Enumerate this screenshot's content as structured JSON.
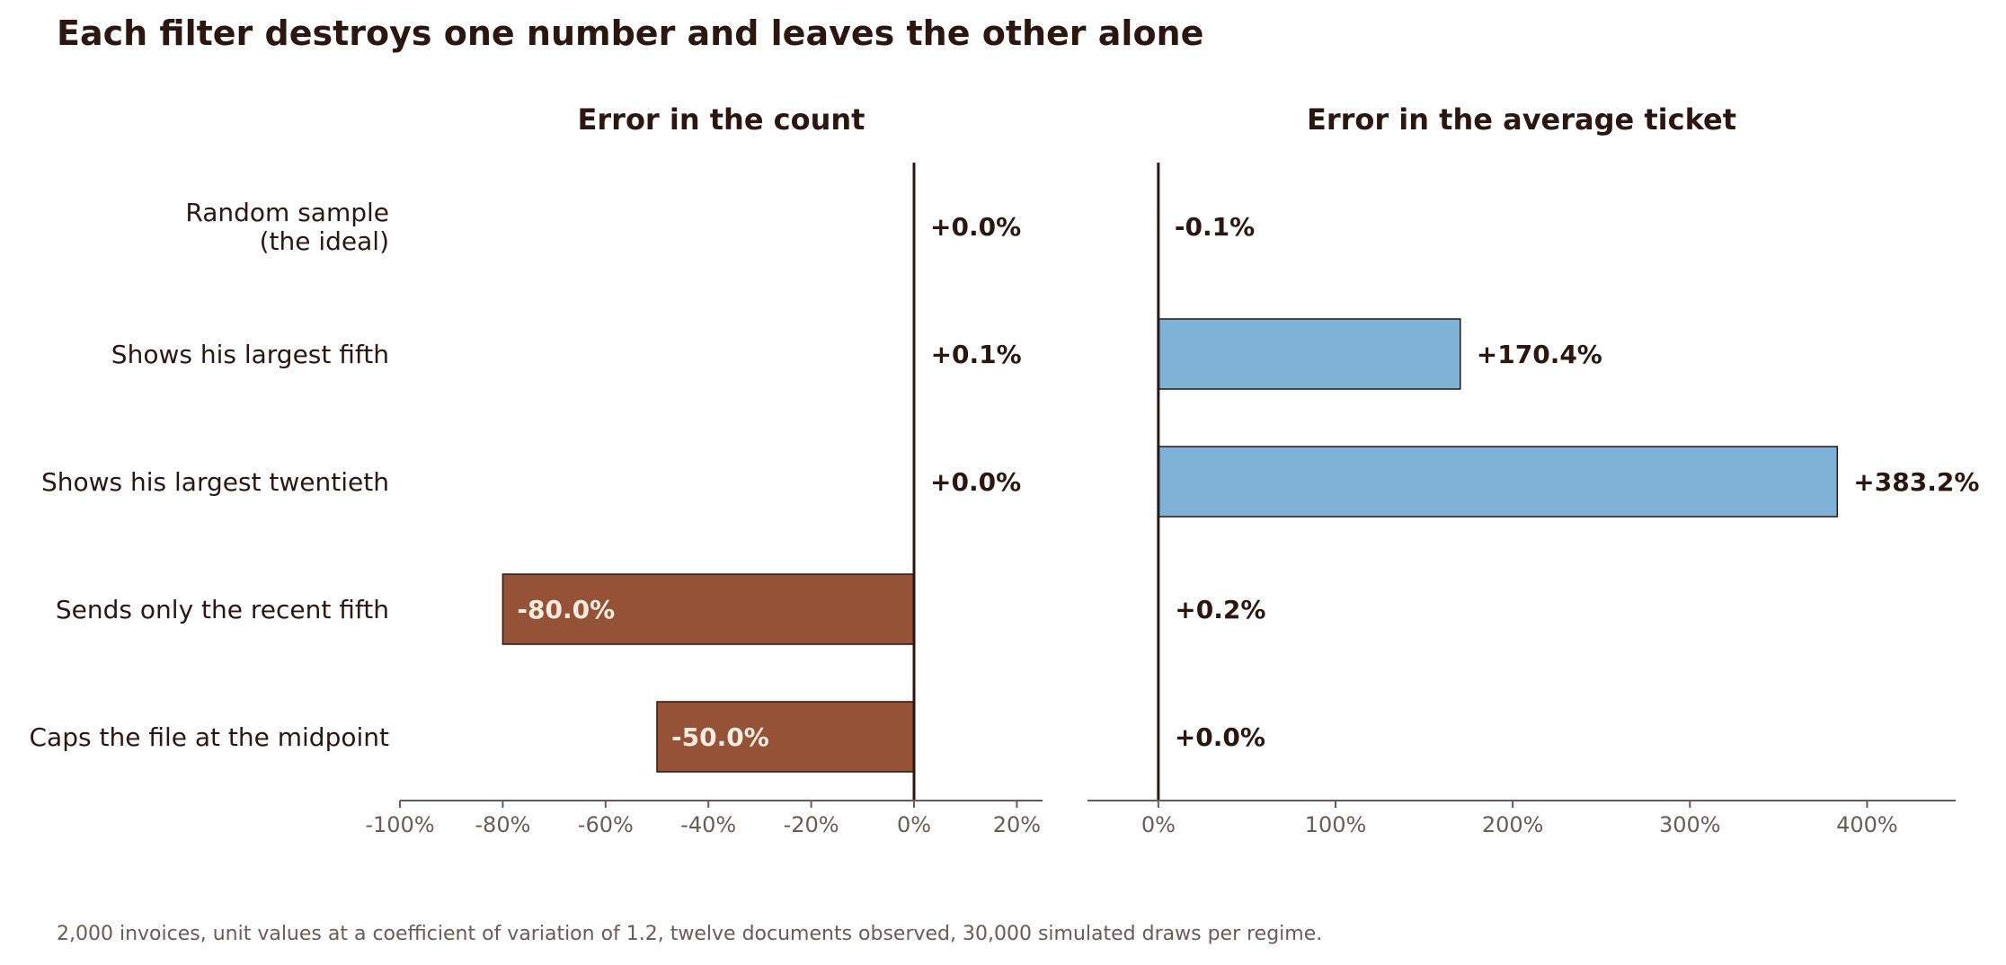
{
  "title": "Each filter destroys one number and leaves the other alone",
  "footnote": "2,000 invoices, unit values at a coefficient of variation of 1.2, twelve documents observed, 30,000 simulated draws per regime.",
  "colors": {
    "count_bar": "#955236",
    "ticket_bar": "#7eb2d6",
    "text": "#2b1710",
    "axis_text": "#6b5b52",
    "inside_label": "#f8ece0"
  },
  "chart_data": [
    {
      "type": "bar",
      "orientation": "horizontal",
      "title": "Error in the count",
      "categories": [
        "Random sample\n(the ideal)",
        "Shows his largest fifth",
        "Shows his largest twentieth",
        "Sends only the recent fifth",
        "Caps the file at the midpoint"
      ],
      "values": [
        0.0,
        0.1,
        0.0,
        -80.0,
        -50.0
      ],
      "value_labels": [
        "+0.0%",
        "+0.1%",
        "+0.0%",
        "-80.0%",
        "-50.0%"
      ],
      "xlim": [
        -100,
        25
      ],
      "xticks": [
        -100,
        -80,
        -60,
        -40,
        -20,
        0,
        20
      ],
      "xtick_labels": [
        "-100%",
        "-80%",
        "-60%",
        "-40%",
        "-20%",
        "0%",
        "20%"
      ],
      "xlabel": "",
      "ylabel": ""
    },
    {
      "type": "bar",
      "orientation": "horizontal",
      "title": "Error in the average ticket",
      "categories": [
        "Random sample\n(the ideal)",
        "Shows his largest fifth",
        "Shows his largest twentieth",
        "Sends only the recent fifth",
        "Caps the file at the midpoint"
      ],
      "values": [
        -0.1,
        170.4,
        383.2,
        0.2,
        0.0
      ],
      "value_labels": [
        "-0.1%",
        "+170.4%",
        "+383.2%",
        "+0.2%",
        "+0.0%"
      ],
      "xlim": [
        -40,
        450
      ],
      "xticks": [
        0,
        100,
        200,
        300,
        400
      ],
      "xtick_labels": [
        "0%",
        "100%",
        "200%",
        "300%",
        "400%"
      ],
      "xlabel": "",
      "ylabel": ""
    }
  ]
}
